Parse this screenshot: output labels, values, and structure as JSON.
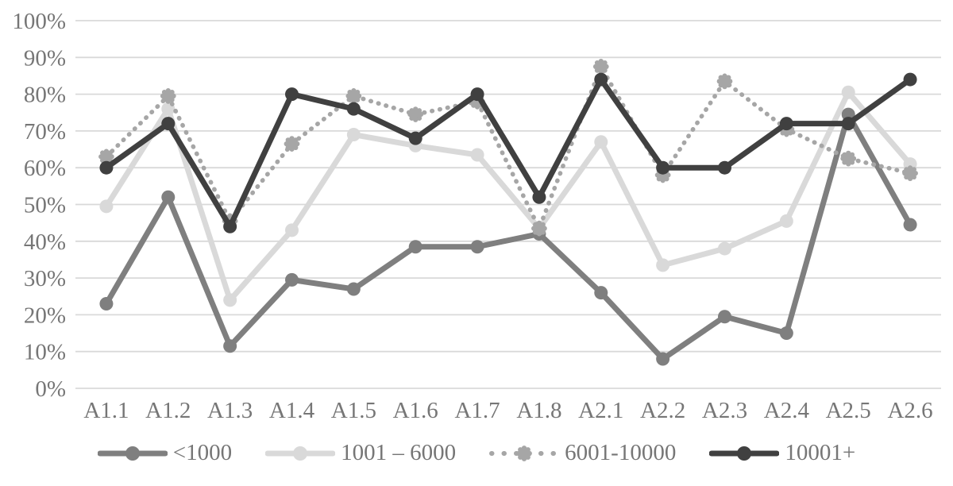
{
  "chart_data": {
    "type": "line",
    "title": "",
    "xlabel": "",
    "ylabel": "",
    "categories": [
      "A1.1",
      "A1.2",
      "A1.3",
      "A1.4",
      "A1.5",
      "A1.6",
      "A1.7",
      "A1.8",
      "A2.1",
      "A2.2",
      "A2.3",
      "A2.4",
      "A2.5",
      "A2.6"
    ],
    "series": [
      {
        "name": "<1000",
        "color": "#7f7f7f",
        "line_style": "solid",
        "marker": "circle",
        "values": [
          23,
          52,
          11.5,
          29.5,
          27,
          38.5,
          38.5,
          42,
          26,
          8,
          19.5,
          15,
          74.5,
          44.5
        ]
      },
      {
        "name": "1001 – 6000",
        "color": "#d9d9d9",
        "line_style": "solid",
        "marker": "circle",
        "values": [
          49.5,
          76,
          24,
          43,
          69,
          66,
          63.5,
          43.5,
          67,
          33.5,
          38,
          45.5,
          80.5,
          61
        ]
      },
      {
        "name": "6001-10000",
        "color": "#a6a6a6",
        "line_style": "dotted",
        "marker": "flower",
        "values": [
          63,
          79.5,
          45.5,
          66.5,
          79.5,
          74.5,
          78,
          43.5,
          87.5,
          58,
          83.5,
          70.5,
          62.5,
          58.5
        ]
      },
      {
        "name": "10001+",
        "color": "#404040",
        "line_style": "solid",
        "marker": "circle",
        "values": [
          60,
          72,
          44,
          80,
          76,
          68,
          80,
          52,
          84,
          60,
          60,
          72,
          72,
          84
        ]
      }
    ],
    "ylim": [
      0,
      100
    ],
    "ytick_step": 10,
    "ytick_labels": [
      "0%",
      "10%",
      "20%",
      "30%",
      "40%",
      "50%",
      "60%",
      "70%",
      "80%",
      "90%",
      "100%"
    ],
    "grid": "horizontal",
    "legend_position": "bottom",
    "gridline_color": "#d9d9d9",
    "axis_text_color": "#767676",
    "background": "#ffffff"
  }
}
